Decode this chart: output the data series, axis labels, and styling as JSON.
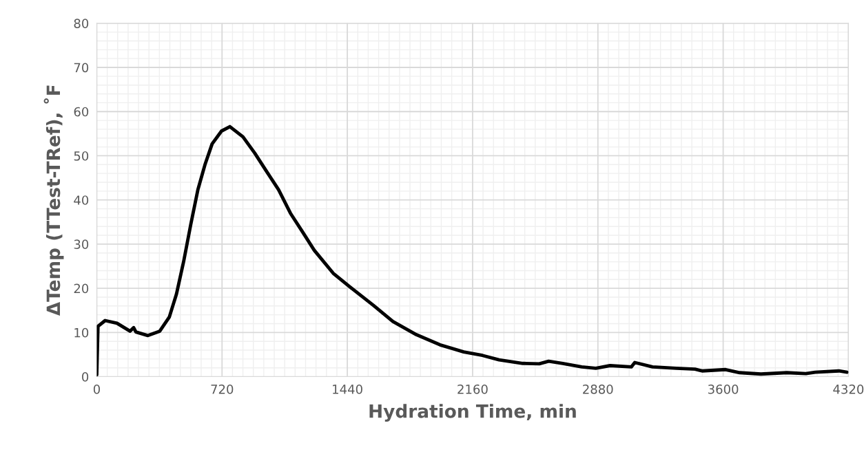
{
  "chart_data": {
    "type": "line",
    "xlabel": "Hydration Time, min",
    "ylabel": "ΔTemp (TTest-TRef), ˚F",
    "xlim": [
      0,
      4320
    ],
    "ylim": [
      0,
      80
    ],
    "xticks": [
      0,
      {
        "value": 60,
        "label": null
      },
      {
        "value": 120,
        "label": null
      },
      {
        "value": 180,
        "label": null
      },
      {
        "value": 240,
        "label": null
      },
      {
        "value": 300,
        "label": null
      },
      {
        "value": 360,
        "label": null
      },
      {
        "value": 420,
        "label": null
      },
      {
        "value": 480,
        "label": null
      },
      {
        "value": 540,
        "label": null
      },
      {
        "value": 600,
        "label": null
      },
      {
        "value": 660,
        "label": null
      },
      720,
      {
        "value": 780,
        "label": null
      },
      {
        "value": 840,
        "label": null
      },
      {
        "value": 900,
        "label": null
      },
      {
        "value": 960,
        "label": null
      },
      {
        "value": 1020,
        "label": null
      },
      {
        "value": 1080,
        "label": null
      },
      {
        "value": 1140,
        "label": null
      },
      {
        "value": 1200,
        "label": null
      },
      {
        "value": 1260,
        "label": null
      },
      {
        "value": 1320,
        "label": null
      },
      {
        "value": 1380,
        "label": null
      },
      1440,
      {
        "value": 1500,
        "label": null
      },
      {
        "value": 1560,
        "label": null
      },
      {
        "value": 1620,
        "label": null
      },
      {
        "value": 1680,
        "label": null
      },
      {
        "value": 1740,
        "label": null
      },
      {
        "value": 1800,
        "label": null
      },
      {
        "value": 1860,
        "label": null
      },
      {
        "value": 1920,
        "label": null
      },
      {
        "value": 1980,
        "label": null
      },
      {
        "value": 2040,
        "label": null
      },
      {
        "value": 2100,
        "label": null
      },
      2160,
      {
        "value": 2220,
        "label": null
      },
      {
        "value": 2280,
        "label": null
      },
      {
        "value": 2340,
        "label": null
      },
      {
        "value": 2400,
        "label": null
      },
      {
        "value": 2460,
        "label": null
      },
      {
        "value": 2520,
        "label": null
      },
      {
        "value": 2580,
        "label": null
      },
      {
        "value": 2640,
        "label": null
      },
      {
        "value": 2700,
        "label": null
      },
      {
        "value": 2760,
        "label": null
      },
      {
        "value": 2820,
        "label": null
      },
      2880,
      {
        "value": 2940,
        "label": null
      },
      {
        "value": 3000,
        "label": null
      },
      {
        "value": 3060,
        "label": null
      },
      {
        "value": 3120,
        "label": null
      },
      {
        "value": 3180,
        "label": null
      },
      {
        "value": 3240,
        "label": null
      },
      {
        "value": 3300,
        "label": null
      },
      {
        "value": 3360,
        "label": null
      },
      {
        "value": 3420,
        "label": null
      },
      {
        "value": 3480,
        "label": null
      },
      {
        "value": 3540,
        "label": null
      },
      3600,
      {
        "value": 3660,
        "label": null
      },
      {
        "value": 3720,
        "label": null
      },
      {
        "value": 3780,
        "label": null
      },
      {
        "value": 3840,
        "label": null
      },
      {
        "value": 3900,
        "label": null
      },
      {
        "value": 3960,
        "label": null
      },
      {
        "value": 4020,
        "label": null
      },
      {
        "value": 4080,
        "label": null
      },
      {
        "value": 4140,
        "label": null
      },
      {
        "value": 4200,
        "label": null
      },
      {
        "value": 4260,
        "label": null
      },
      4320
    ],
    "yticks": [
      0,
      {
        "value": 2,
        "label": null
      },
      {
        "value": 4,
        "label": null
      },
      {
        "value": 6,
        "label": null
      },
      {
        "value": 8,
        "label": null
      },
      10,
      {
        "value": 12,
        "label": null
      },
      {
        "value": 14,
        "label": null
      },
      {
        "value": 16,
        "label": null
      },
      {
        "value": 18,
        "label": null
      },
      20,
      {
        "value": 22,
        "label": null
      },
      {
        "value": 24,
        "label": null
      },
      {
        "value": 26,
        "label": null
      },
      {
        "value": 28,
        "label": null
      },
      30,
      {
        "value": 32,
        "label": null
      },
      {
        "value": 34,
        "label": null
      },
      {
        "value": 36,
        "label": null
      },
      {
        "value": 38,
        "label": null
      },
      40,
      {
        "value": 42,
        "label": null
      },
      {
        "value": 44,
        "label": null
      },
      {
        "value": 46,
        "label": null
      },
      {
        "value": 48,
        "label": null
      },
      50,
      {
        "value": 52,
        "label": null
      },
      {
        "value": 54,
        "label": null
      },
      {
        "value": 56,
        "label": null
      },
      {
        "value": 58,
        "label": null
      },
      60,
      {
        "value": 62,
        "label": null
      },
      {
        "value": 64,
        "label": null
      },
      {
        "value": 66,
        "label": null
      },
      {
        "value": 68,
        "label": null
      },
      70,
      {
        "value": 72,
        "label": null
      },
      {
        "value": 74,
        "label": null
      },
      {
        "value": 76,
        "label": null
      },
      {
        "value": 78,
        "label": null
      },
      80
    ],
    "grid": true,
    "marker": "none",
    "line_style": "solid",
    "series": [
      {
        "color": "#000000",
        "x": [
          0,
          7,
          48,
          116,
          191,
          212,
          225,
          294,
          362,
          417,
          458,
          499,
          540,
          581,
          622,
          663,
          717,
          765,
          840,
          908,
          977,
          1045,
          1113,
          1182,
          1250,
          1359,
          1455,
          1591,
          1702,
          1837,
          1973,
          2109,
          2217,
          2312,
          2448,
          2543,
          2597,
          2678,
          2787,
          2868,
          2950,
          3072,
          3092,
          3194,
          3330,
          3438,
          3479,
          3614,
          3695,
          3817,
          3966,
          4075,
          4129,
          4265,
          4312
        ],
        "values": [
          0.4,
          11.4,
          12.7,
          12.1,
          10.3,
          11.1,
          10.1,
          9.3,
          10.3,
          13.5,
          18.7,
          26.0,
          34.4,
          42.3,
          48.0,
          52.7,
          55.6,
          56.6,
          54.3,
          50.6,
          46.4,
          42.3,
          37.0,
          32.8,
          28.6,
          23.4,
          20.3,
          16.1,
          12.5,
          9.5,
          7.2,
          5.6,
          4.8,
          3.8,
          3.0,
          2.9,
          3.5,
          3.0,
          2.2,
          1.9,
          2.5,
          2.2,
          3.2,
          2.2,
          1.9,
          1.7,
          1.3,
          1.6,
          0.9,
          0.6,
          0.9,
          0.7,
          1.0,
          1.3,
          1.0
        ]
      }
    ]
  }
}
